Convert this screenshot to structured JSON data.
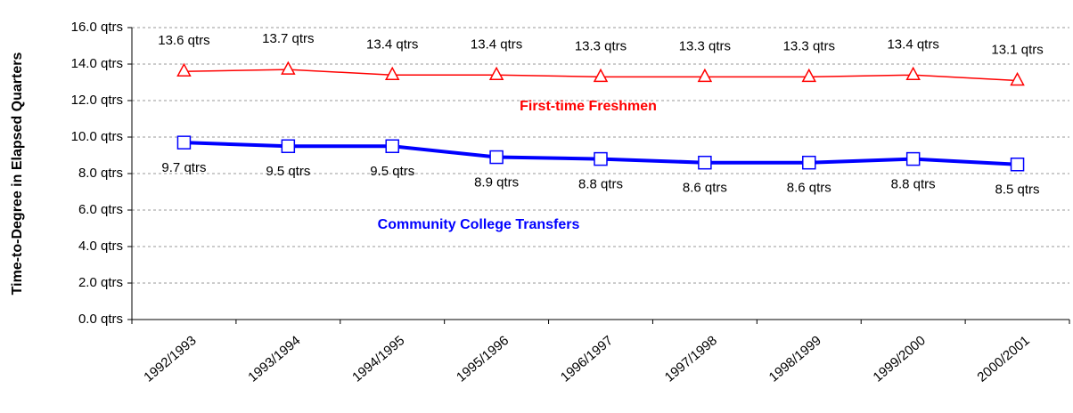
{
  "chart_data": {
    "type": "line",
    "y_label": "Time-to-Degree in Elapsed Quarters",
    "categories": [
      "1992/1993",
      "1993/1994",
      "1994/1995",
      "1995/1996",
      "1996/1997",
      "1997/1998",
      "1998/1999",
      "1999/2000",
      "2000/2001"
    ],
    "series": [
      {
        "name": "First-time Freshmen",
        "color": "#ff0000",
        "marker": "triangle",
        "values": [
          13.6,
          13.7,
          13.4,
          13.4,
          13.3,
          13.3,
          13.3,
          13.4,
          13.1
        ],
        "value_labels": [
          "13.6 qtrs",
          "13.7 qtrs",
          "13.4 qtrs",
          "13.4 qtrs",
          "13.3 qtrs",
          "13.3 qtrs",
          "13.3 qtrs",
          "13.4 qtrs",
          "13.1 qtrs"
        ]
      },
      {
        "name": "Community College Transfers",
        "color": "#0000ff",
        "marker": "square",
        "values": [
          9.7,
          9.5,
          9.5,
          8.9,
          8.8,
          8.6,
          8.6,
          8.8,
          8.5
        ],
        "value_labels": [
          "9.7 qtrs",
          "9.5 qtrs",
          "9.5 qtrs",
          "8.9 qtrs",
          "8.8 qtrs",
          "8.6 qtrs",
          "8.6 qtrs",
          "8.8 qtrs",
          "8.5 qtrs"
        ]
      }
    ],
    "ylim": [
      0,
      16
    ],
    "yticks": [
      {
        "value": 0,
        "label": "0.0 qtrs"
      },
      {
        "value": 2,
        "label": "2.0 qtrs"
      },
      {
        "value": 4,
        "label": "4.0 qtrs"
      },
      {
        "value": 6,
        "label": "6.0 qtrs"
      },
      {
        "value": 8,
        "label": "8.0 qtrs"
      },
      {
        "value": 10,
        "label": "10.0 qtrs"
      },
      {
        "value": 12,
        "label": "12.0 qtrs"
      },
      {
        "value": 14,
        "label": "14.0 qtrs"
      },
      {
        "value": 16,
        "label": "16.0 qtrs"
      }
    ],
    "grid": true
  }
}
